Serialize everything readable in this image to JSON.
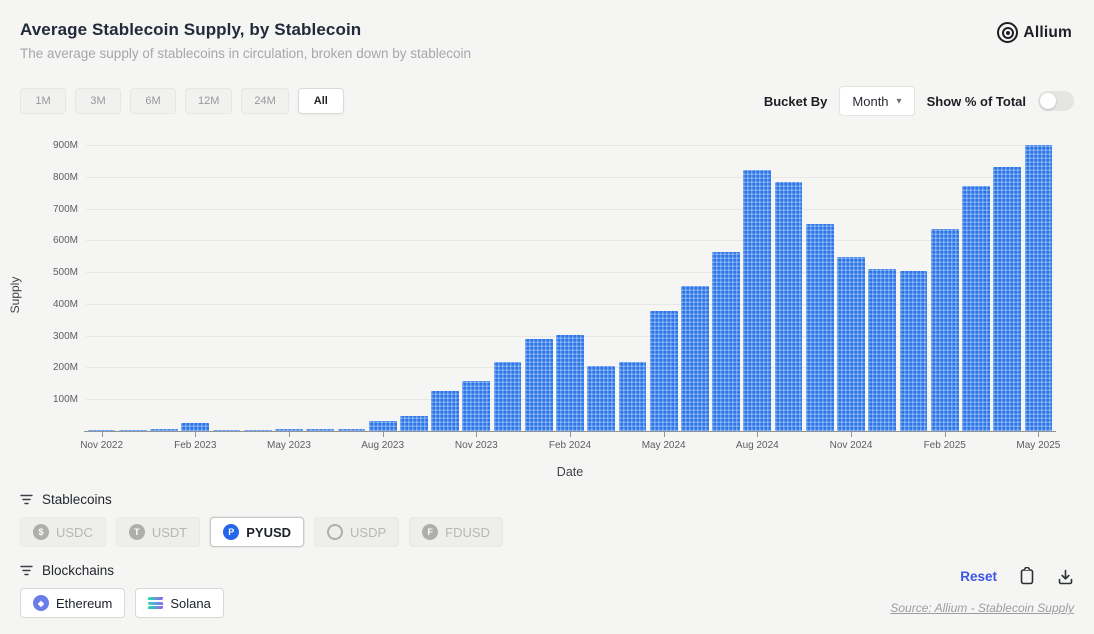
{
  "header": {
    "title": "Average Stablecoin Supply, by Stablecoin",
    "subtitle": "The average supply of stablecoins in circulation, broken down by stablecoin",
    "brand": "Allium"
  },
  "controls": {
    "ranges": [
      {
        "label": "1M",
        "active": false
      },
      {
        "label": "3M",
        "active": false
      },
      {
        "label": "6M",
        "active": false
      },
      {
        "label": "12M",
        "active": false
      },
      {
        "label": "24M",
        "active": false
      },
      {
        "label": "All",
        "active": true
      }
    ],
    "bucket_by_label": "Bucket By",
    "bucket_value": "Month",
    "toggle_label": "Show % of Total",
    "toggle_on": false
  },
  "chart_data": {
    "type": "bar",
    "title": "Average Stablecoin Supply, by Stablecoin",
    "xlabel": "Date",
    "ylabel": "Supply",
    "unit": "M",
    "ylim": [
      0,
      900
    ],
    "y_ticks": [
      100,
      200,
      300,
      400,
      500,
      600,
      700,
      800,
      900
    ],
    "grid": true,
    "x_tick_every": 3,
    "bar_color": "#2a74e8",
    "x": [
      "Nov 2022",
      "Dec 2022",
      "Jan 2023",
      "Feb 2023",
      "Mar 2023",
      "Apr 2023",
      "May 2023",
      "Jun 2023",
      "Jul 2023",
      "Aug 2023",
      "Sep 2023",
      "Oct 2023",
      "Nov 2023",
      "Dec 2023",
      "Jan 2024",
      "Feb 2024",
      "Mar 2024",
      "Apr 2024",
      "May 2024",
      "Jun 2024",
      "Jul 2024",
      "Aug 2024",
      "Sep 2024",
      "Oct 2024",
      "Nov 2024",
      "Dec 2024",
      "Jan 2025",
      "Feb 2025",
      "Mar 2025",
      "Apr 2025",
      "May 2025"
    ],
    "values": [
      3,
      4,
      5,
      25,
      4,
      4,
      5,
      5,
      5,
      30,
      48,
      125,
      157,
      218,
      288,
      303,
      205,
      218,
      378,
      455,
      563,
      822,
      783,
      652,
      547,
      510,
      505,
      636,
      770,
      832,
      900
    ]
  },
  "filters": {
    "stablecoins": {
      "label": "Stablecoins",
      "chips": [
        {
          "label": "USDC",
          "active": false,
          "icon": "usdc-icon",
          "glyph": "$"
        },
        {
          "label": "USDT",
          "active": false,
          "icon": "usdt-icon",
          "glyph": "T"
        },
        {
          "label": "PYUSD",
          "active": true,
          "icon": "pyusd-icon",
          "glyph": "P",
          "icon_color": "#2566eb"
        },
        {
          "label": "USDP",
          "active": false,
          "icon": "usdp-icon",
          "glyph": ""
        },
        {
          "label": "FDUSD",
          "active": false,
          "icon": "fdusd-icon",
          "glyph": "F"
        }
      ]
    },
    "blockchains": {
      "label": "Blockchains",
      "chips": [
        {
          "label": "Ethereum",
          "active": true,
          "icon": "ethereum-icon",
          "icon_color": "#6a7de8"
        },
        {
          "label": "Solana",
          "active": true,
          "icon": "solana-icon"
        }
      ]
    }
  },
  "footer": {
    "reset_label": "Reset",
    "source": "Source: Allium - Stablecoin Supply"
  },
  "colors": {
    "bar": "#2a74e8",
    "reset_link": "#3d55e8",
    "background": "#f5f5f3",
    "inactive_chip_bg": "#eeeeec",
    "gridline": "#e7e7e5"
  }
}
